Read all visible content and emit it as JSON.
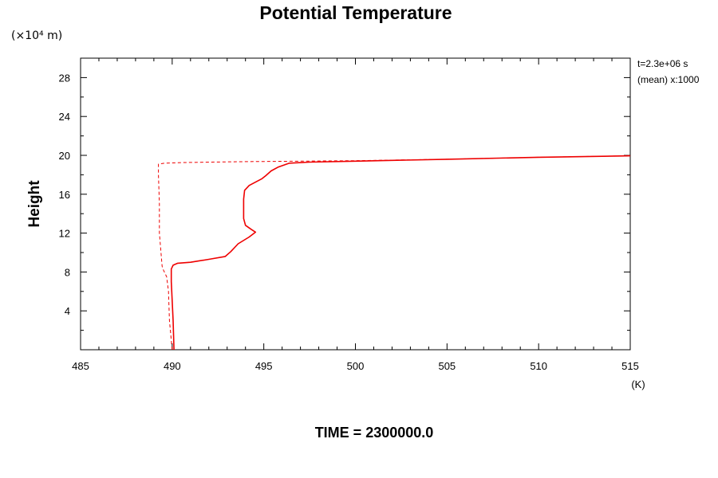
{
  "chart_data": {
    "type": "line",
    "title": "Potential Temperature",
    "xlabel": "(K)",
    "ylabel": "Height",
    "y_unit": "(×10⁴ m)",
    "xlim": [
      485,
      515
    ],
    "ylim": [
      0,
      30
    ],
    "x_ticks": [
      485,
      490,
      495,
      500,
      505,
      510,
      515
    ],
    "y_ticks": [
      4,
      8,
      12,
      16,
      20,
      24,
      28
    ],
    "grid": false,
    "annotations": [
      "t=2.3e+06 s",
      "(mean) x:1000"
    ],
    "footer": "TIME = 2300000.0",
    "series": [
      {
        "style": "solid",
        "color": "#ee0000",
        "points": [
          [
            490.1,
            0.0
          ],
          [
            490.05,
            3.0
          ],
          [
            489.95,
            7.0
          ],
          [
            489.95,
            8.3
          ],
          [
            490.05,
            8.7
          ],
          [
            490.3,
            8.9
          ],
          [
            491.0,
            9.0
          ],
          [
            492.0,
            9.3
          ],
          [
            492.9,
            9.6
          ],
          [
            493.2,
            10.1
          ],
          [
            493.6,
            10.9
          ],
          [
            494.2,
            11.6
          ],
          [
            494.55,
            12.1
          ],
          [
            494.3,
            12.4
          ],
          [
            494.0,
            12.8
          ],
          [
            493.9,
            13.5
          ],
          [
            493.9,
            15.5
          ],
          [
            493.95,
            16.4
          ],
          [
            494.2,
            16.9
          ],
          [
            494.6,
            17.3
          ],
          [
            494.9,
            17.6
          ],
          [
            495.1,
            17.9
          ],
          [
            495.4,
            18.4
          ],
          [
            495.8,
            18.8
          ],
          [
            496.4,
            19.2
          ],
          [
            497.5,
            19.3
          ],
          [
            500.0,
            19.4
          ],
          [
            505.0,
            19.6
          ],
          [
            510.0,
            19.8
          ],
          [
            515.0,
            19.95
          ]
        ]
      },
      {
        "style": "dashed",
        "color": "#ee0000",
        "points": [
          [
            490.0,
            0.0
          ],
          [
            489.85,
            3.0
          ],
          [
            489.8,
            6.0
          ],
          [
            489.7,
            7.5
          ],
          [
            489.5,
            8.3
          ],
          [
            489.45,
            8.6
          ],
          [
            489.3,
            12.0
          ],
          [
            489.3,
            15.0
          ],
          [
            489.25,
            18.0
          ],
          [
            489.25,
            19.1
          ],
          [
            489.6,
            19.2
          ],
          [
            490.5,
            19.25
          ],
          [
            492.0,
            19.3
          ],
          [
            494.0,
            19.35
          ],
          [
            497.0,
            19.4
          ],
          [
            500.0,
            19.45
          ],
          [
            505.0,
            19.6
          ],
          [
            510.0,
            19.8
          ],
          [
            515.0,
            19.95
          ]
        ]
      }
    ]
  }
}
